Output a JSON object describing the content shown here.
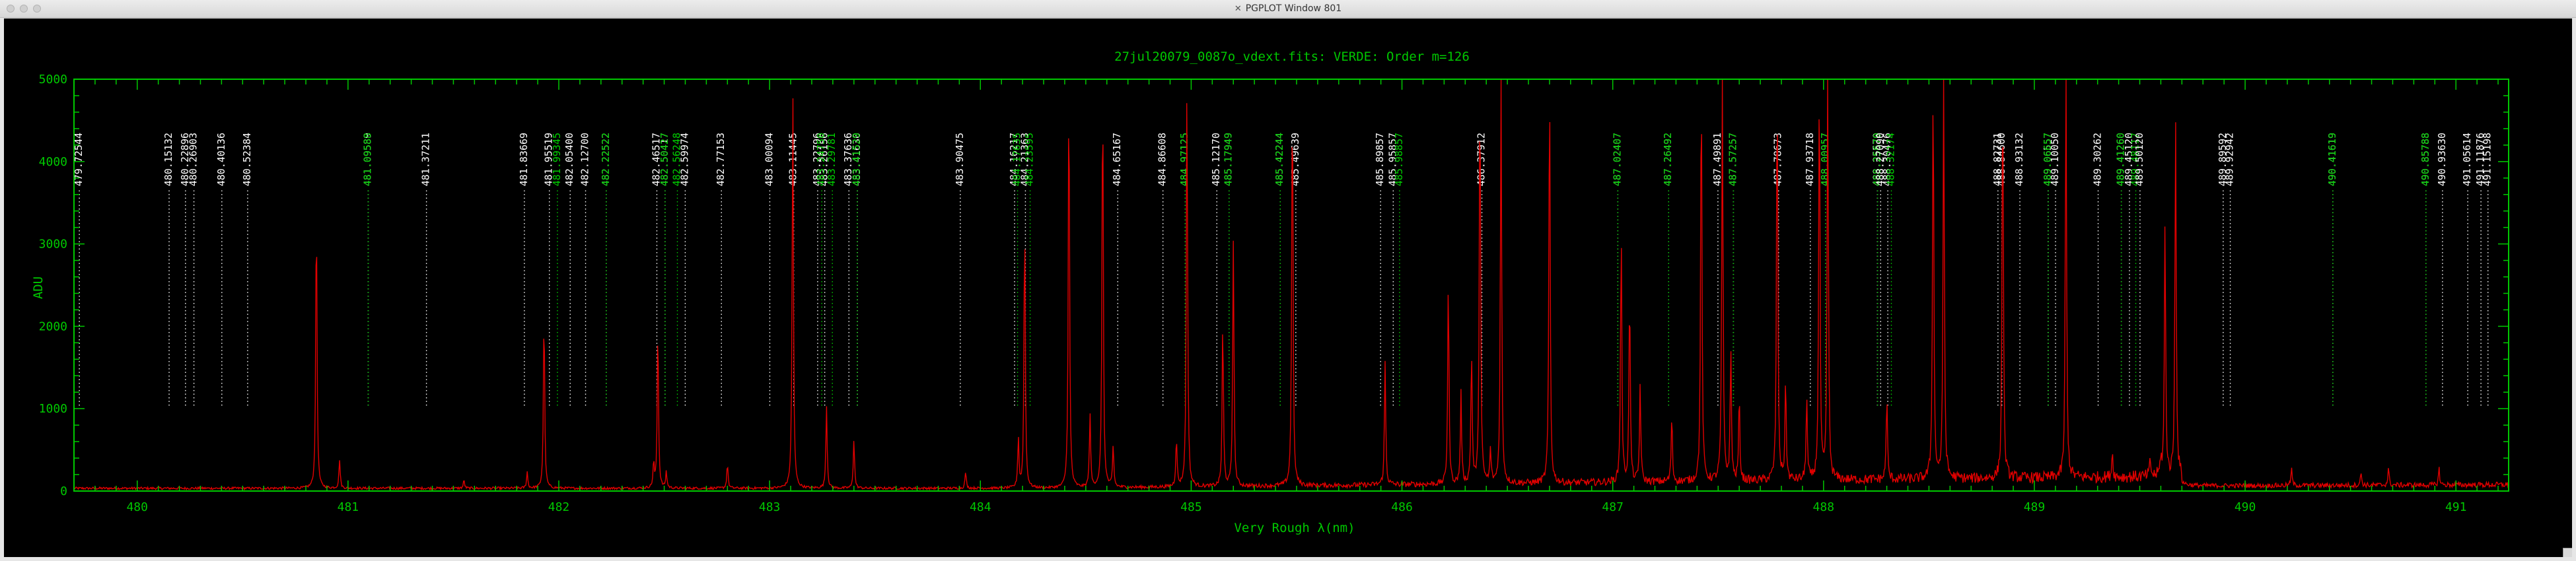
{
  "window": {
    "title": "PGPLOT Window 801",
    "app_icon": "x11-icon"
  },
  "colors": {
    "frame": "#00c800",
    "spectrum": "#e00000",
    "label_white": "#ffffff",
    "label_green": "#00d000",
    "background": "#000000"
  },
  "chart_data": {
    "type": "line",
    "title": "27jul20079_0087o_vdext.fits: VERDE: Order m=126",
    "xlabel": "Very Rough λ(nm)",
    "ylabel": "ADU",
    "xlim": [
      479.7,
      491.25
    ],
    "ylim": [
      0,
      5000
    ],
    "xticks": [
      480,
      481,
      482,
      483,
      484,
      485,
      486,
      487,
      488,
      489,
      490,
      491
    ],
    "yticks": [
      0,
      1000,
      2000,
      3000,
      4000,
      5000
    ],
    "baseline_level": 80,
    "peaks": [
      {
        "x": 480.85,
        "y": 3400
      },
      {
        "x": 480.96,
        "y": 350
      },
      {
        "x": 481.55,
        "y": 100
      },
      {
        "x": 481.85,
        "y": 200
      },
      {
        "x": 481.93,
        "y": 2150
      },
      {
        "x": 482.45,
        "y": 300
      },
      {
        "x": 482.47,
        "y": 2000
      },
      {
        "x": 482.51,
        "y": 200
      },
      {
        "x": 482.8,
        "y": 300
      },
      {
        "x": 483.11,
        "y": 4900
      },
      {
        "x": 483.27,
        "y": 1000
      },
      {
        "x": 483.4,
        "y": 600
      },
      {
        "x": 483.93,
        "y": 200
      },
      {
        "x": 484.18,
        "y": 600
      },
      {
        "x": 484.21,
        "y": 3300
      },
      {
        "x": 484.42,
        "y": 5000
      },
      {
        "x": 484.52,
        "y": 900
      },
      {
        "x": 484.58,
        "y": 5000
      },
      {
        "x": 484.63,
        "y": 500
      },
      {
        "x": 484.93,
        "y": 600
      },
      {
        "x": 484.98,
        "y": 5000
      },
      {
        "x": 485.15,
        "y": 2000
      },
      {
        "x": 485.2,
        "y": 3000
      },
      {
        "x": 485.48,
        "y": 5000
      },
      {
        "x": 485.92,
        "y": 1500
      },
      {
        "x": 486.22,
        "y": 2500
      },
      {
        "x": 486.28,
        "y": 1100
      },
      {
        "x": 486.33,
        "y": 1600
      },
      {
        "x": 486.37,
        "y": 5000
      },
      {
        "x": 486.42,
        "y": 400
      },
      {
        "x": 486.47,
        "y": 5000
      },
      {
        "x": 486.7,
        "y": 5000
      },
      {
        "x": 487.04,
        "y": 3100
      },
      {
        "x": 487.08,
        "y": 2300
      },
      {
        "x": 487.13,
        "y": 1200
      },
      {
        "x": 487.28,
        "y": 800
      },
      {
        "x": 487.42,
        "y": 5000
      },
      {
        "x": 487.52,
        "y": 5000
      },
      {
        "x": 487.56,
        "y": 1600
      },
      {
        "x": 487.6,
        "y": 1000
      },
      {
        "x": 487.78,
        "y": 5000
      },
      {
        "x": 487.82,
        "y": 1200
      },
      {
        "x": 487.92,
        "y": 1000
      },
      {
        "x": 487.98,
        "y": 5000
      },
      {
        "x": 488.02,
        "y": 5000
      },
      {
        "x": 488.3,
        "y": 1000
      },
      {
        "x": 488.52,
        "y": 5000
      },
      {
        "x": 488.57,
        "y": 5000
      },
      {
        "x": 488.85,
        "y": 5000
      },
      {
        "x": 489.15,
        "y": 5000
      },
      {
        "x": 489.37,
        "y": 300
      },
      {
        "x": 489.55,
        "y": 200
      },
      {
        "x": 489.6,
        "y": 200
      },
      {
        "x": 489.62,
        "y": 3050
      },
      {
        "x": 489.67,
        "y": 4400
      },
      {
        "x": 490.22,
        "y": 200
      },
      {
        "x": 490.55,
        "y": 150
      },
      {
        "x": 490.68,
        "y": 200
      },
      {
        "x": 490.92,
        "y": 200
      }
    ],
    "line_markers": [
      {
        "x": 479.72544,
        "label": "479.72544",
        "color": "white"
      },
      {
        "x": 480.15132,
        "label": "480.15132",
        "color": "white"
      },
      {
        "x": 480.22896,
        "label": "480.22896",
        "color": "white"
      },
      {
        "x": 480.26903,
        "label": "480.26903",
        "color": "white"
      },
      {
        "x": 480.40136,
        "label": "480.40136",
        "color": "white"
      },
      {
        "x": 480.52384,
        "label": "480.52384",
        "color": "white"
      },
      {
        "x": 481.09589,
        "label": "481.09589",
        "color": "white"
      },
      {
        "x": 481.09588,
        "label": "481.09588",
        "color": "green"
      },
      {
        "x": 481.37211,
        "label": "481.37211",
        "color": "white"
      },
      {
        "x": 481.83669,
        "label": "481.83669",
        "color": "white"
      },
      {
        "x": 481.95519,
        "label": "481.95519",
        "color": "white"
      },
      {
        "x": 481.99345,
        "label": "481.99345",
        "color": "green"
      },
      {
        "x": 482.054,
        "label": "482.05400",
        "color": "white"
      },
      {
        "x": 482.127,
        "label": "482.12700",
        "color": "white"
      },
      {
        "x": 482.22522,
        "label": "482.22522",
        "color": "white"
      },
      {
        "x": 482.22522,
        "label": "482.22522",
        "color": "green"
      },
      {
        "x": 482.46517,
        "label": "482.46517",
        "color": "white"
      },
      {
        "x": 482.50417,
        "label": "482.50417",
        "color": "white"
      },
      {
        "x": 482.50427,
        "label": "482.50427",
        "color": "green"
      },
      {
        "x": 482.56248,
        "label": "482.56248",
        "color": "green"
      },
      {
        "x": 482.59974,
        "label": "482.59974",
        "color": "white"
      },
      {
        "x": 482.77153,
        "label": "482.77153",
        "color": "white"
      },
      {
        "x": 483.00094,
        "label": "483.00094",
        "color": "white"
      },
      {
        "x": 483.11445,
        "label": "483.11445",
        "color": "white"
      },
      {
        "x": 483.22796,
        "label": "483.22796",
        "color": "white"
      },
      {
        "x": 483.26156,
        "label": "483.26156",
        "color": "white"
      },
      {
        "x": 483.2475,
        "label": "483.24750",
        "color": "green"
      },
      {
        "x": 483.29781,
        "label": "483.29781",
        "color": "green"
      },
      {
        "x": 483.37636,
        "label": "483.37636",
        "color": "white"
      },
      {
        "x": 483.4163,
        "label": "483.41630",
        "color": "white"
      },
      {
        "x": 483.41529,
        "label": "483.41529",
        "color": "green"
      },
      {
        "x": 483.90475,
        "label": "483.90475",
        "color": "white"
      },
      {
        "x": 484.16217,
        "label": "484.16217",
        "color": "white"
      },
      {
        "x": 484.21363,
        "label": "484.21363",
        "color": "white"
      },
      {
        "x": 484.17635,
        "label": "484.17635",
        "color": "green"
      },
      {
        "x": 484.23595,
        "label": "484.23595",
        "color": "green"
      },
      {
        "x": 484.65167,
        "label": "484.65167",
        "color": "white"
      },
      {
        "x": 484.86608,
        "label": "484.86608",
        "color": "white"
      },
      {
        "x": 484.97125,
        "label": "484.97125",
        "color": "white"
      },
      {
        "x": 484.97125,
        "label": "484.97125",
        "color": "green"
      },
      {
        "x": 485.1217,
        "label": "485.12170",
        "color": "white"
      },
      {
        "x": 485.17949,
        "label": "485.17949",
        "color": "white"
      },
      {
        "x": 485.17949,
        "label": "485.17949",
        "color": "green"
      },
      {
        "x": 485.42244,
        "label": "485.42244",
        "color": "white"
      },
      {
        "x": 485.42244,
        "label": "485.42244",
        "color": "green"
      },
      {
        "x": 485.49639,
        "label": "485.49639",
        "color": "white"
      },
      {
        "x": 485.89857,
        "label": "485.89857",
        "color": "white"
      },
      {
        "x": 485.95857,
        "label": "485.95857",
        "color": "white"
      },
      {
        "x": 485.98857,
        "label": "485.98857",
        "color": "green"
      },
      {
        "x": 486.37912,
        "label": "486.37912",
        "color": "white"
      },
      {
        "x": 487.02407,
        "label": "487.02407",
        "color": "white"
      },
      {
        "x": 487.02407,
        "label": "487.02407",
        "color": "green"
      },
      {
        "x": 487.26492,
        "label": "487.26492",
        "color": "white"
      },
      {
        "x": 487.26492,
        "label": "487.26492",
        "color": "green"
      },
      {
        "x": 487.49891,
        "label": "487.49891",
        "color": "white"
      },
      {
        "x": 487.57257,
        "label": "487.57257",
        "color": "white"
      },
      {
        "x": 487.57257,
        "label": "487.57257",
        "color": "green"
      },
      {
        "x": 487.78673,
        "label": "487.78673",
        "color": "white"
      },
      {
        "x": 487.93718,
        "label": "487.93718",
        "color": "white"
      },
      {
        "x": 488.00957,
        "label": "488.00957",
        "color": "white"
      },
      {
        "x": 488.00957,
        "label": "488.00957",
        "color": "green"
      },
      {
        "x": 488.2557,
        "label": "488.25570",
        "color": "white"
      },
      {
        "x": 488.25679,
        "label": "488.25679",
        "color": "green"
      },
      {
        "x": 488.2709,
        "label": "488.27090",
        "color": "white"
      },
      {
        "x": 488.30476,
        "label": "488.30476",
        "color": "white"
      },
      {
        "x": 488.32174,
        "label": "488.32174",
        "color": "green"
      },
      {
        "x": 488.82731,
        "label": "488.82731",
        "color": "white"
      },
      {
        "x": 488.846,
        "label": "488.84600",
        "color": "white"
      },
      {
        "x": 488.93132,
        "label": "488.93132",
        "color": "white"
      },
      {
        "x": 489.06557,
        "label": "489.06557",
        "color": "white"
      },
      {
        "x": 489.06657,
        "label": "489.06657",
        "color": "green"
      },
      {
        "x": 489.1005,
        "label": "489.10050",
        "color": "white"
      },
      {
        "x": 489.30262,
        "label": "489.30262",
        "color": "white"
      },
      {
        "x": 489.4126,
        "label": "489.41260",
        "color": "white"
      },
      {
        "x": 489.4126,
        "label": "489.41260",
        "color": "green"
      },
      {
        "x": 489.4512,
        "label": "489.45120",
        "color": "white"
      },
      {
        "x": 489.48117,
        "label": "489.48117",
        "color": "green"
      },
      {
        "x": 489.5012,
        "label": "489.50120",
        "color": "white"
      },
      {
        "x": 489.89592,
        "label": "489.89592",
        "color": "white"
      },
      {
        "x": 489.92942,
        "label": "489.92942",
        "color": "white"
      },
      {
        "x": 490.41619,
        "label": "490.41619",
        "color": "white"
      },
      {
        "x": 490.41619,
        "label": "490.41619",
        "color": "green"
      },
      {
        "x": 490.85788,
        "label": "490.85788",
        "color": "white"
      },
      {
        "x": 490.85788,
        "label": "490.85788",
        "color": "green"
      },
      {
        "x": 490.9363,
        "label": "490.93630",
        "color": "white"
      },
      {
        "x": 491.05614,
        "label": "491.05614",
        "color": "white"
      },
      {
        "x": 491.11876,
        "label": "491.11876",
        "color": "white"
      },
      {
        "x": 491.15198,
        "label": "491.15198",
        "color": "white"
      }
    ]
  }
}
